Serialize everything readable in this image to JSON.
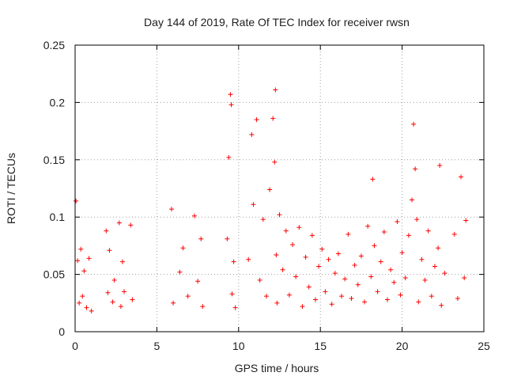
{
  "chart_data": {
    "type": "scatter",
    "title": "Day 144 of 2019, Rate Of TEC Index for receiver rwsn",
    "xlabel": "GPS time / hours",
    "ylabel": "ROTI / TECUs",
    "xlim": [
      0,
      25
    ],
    "ylim": [
      0,
      0.25
    ],
    "x_ticks": [
      "0",
      "5",
      "10",
      "15",
      "20",
      "25"
    ],
    "y_ticks": [
      "0",
      "0.05",
      "0.1",
      "0.15",
      "0.2",
      "0.25"
    ],
    "grid": true,
    "marker": "+",
    "color": "#ff0000",
    "x": [
      0.05,
      0.15,
      0.25,
      0.35,
      0.45,
      0.55,
      0.7,
      0.85,
      1.0,
      1.9,
      2.0,
      2.1,
      2.3,
      2.4,
      2.7,
      2.8,
      2.9,
      3.0,
      3.4,
      3.5,
      5.9,
      6.0,
      6.4,
      6.6,
      6.9,
      7.3,
      7.5,
      7.7,
      7.8,
      9.3,
      9.4,
      9.5,
      9.55,
      9.6,
      9.7,
      9.8,
      10.6,
      10.8,
      10.9,
      11.1,
      11.3,
      11.5,
      11.7,
      11.9,
      12.1,
      12.2,
      12.25,
      12.3,
      12.35,
      12.5,
      12.7,
      12.9,
      13.1,
      13.3,
      13.5,
      13.7,
      13.9,
      14.1,
      14.3,
      14.5,
      14.7,
      14.9,
      15.1,
      15.3,
      15.5,
      15.7,
      15.9,
      16.1,
      16.3,
      16.5,
      16.7,
      16.9,
      17.1,
      17.3,
      17.5,
      17.7,
      17.9,
      18.1,
      18.2,
      18.3,
      18.5,
      18.7,
      18.9,
      19.1,
      19.3,
      19.5,
      19.7,
      19.9,
      20.0,
      20.2,
      20.4,
      20.6,
      20.7,
      20.8,
      20.9,
      21.0,
      21.2,
      21.4,
      21.6,
      21.8,
      22.0,
      22.2,
      22.3,
      22.4,
      22.6,
      23.2,
      23.4,
      23.6,
      23.8,
      23.9
    ],
    "y": [
      0.114,
      0.062,
      0.025,
      0.072,
      0.031,
      0.053,
      0.021,
      0.064,
      0.018,
      0.088,
      0.034,
      0.071,
      0.026,
      0.045,
      0.095,
      0.022,
      0.061,
      0.035,
      0.093,
      0.028,
      0.107,
      0.025,
      0.052,
      0.073,
      0.031,
      0.101,
      0.044,
      0.081,
      0.022,
      0.081,
      0.152,
      0.207,
      0.198,
      0.033,
      0.061,
      0.021,
      0.063,
      0.172,
      0.111,
      0.185,
      0.045,
      0.098,
      0.031,
      0.124,
      0.186,
      0.148,
      0.211,
      0.067,
      0.025,
      0.102,
      0.054,
      0.088,
      0.032,
      0.076,
      0.048,
      0.091,
      0.022,
      0.065,
      0.039,
      0.084,
      0.028,
      0.057,
      0.072,
      0.035,
      0.063,
      0.024,
      0.051,
      0.068,
      0.031,
      0.046,
      0.085,
      0.029,
      0.058,
      0.041,
      0.066,
      0.026,
      0.092,
      0.048,
      0.133,
      0.075,
      0.035,
      0.061,
      0.087,
      0.028,
      0.054,
      0.043,
      0.096,
      0.032,
      0.069,
      0.047,
      0.084,
      0.115,
      0.181,
      0.142,
      0.098,
      0.026,
      0.063,
      0.045,
      0.088,
      0.031,
      0.057,
      0.073,
      0.145,
      0.023,
      0.051,
      0.085,
      0.029,
      0.135,
      0.047,
      0.097
    ]
  }
}
